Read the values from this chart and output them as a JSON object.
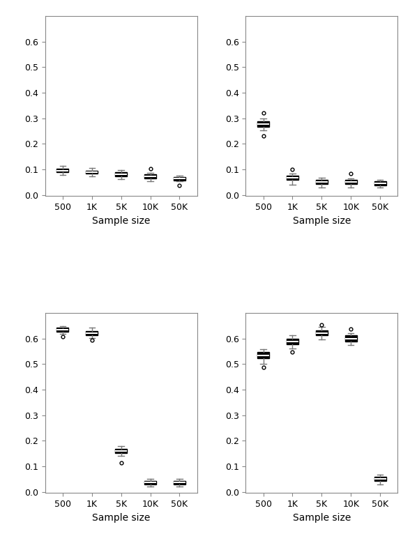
{
  "panels": [
    {
      "xlabel": "Sample size",
      "ylim": [
        -0.005,
        0.7
      ],
      "yticks": [
        0.0,
        0.1,
        0.2,
        0.3,
        0.4,
        0.5,
        0.6
      ],
      "xtick_labels": [
        "500",
        "1K",
        "5K",
        "10K",
        "50K"
      ],
      "boxes": [
        {
          "med": 0.095,
          "q1": 0.088,
          "q3": 0.102,
          "whislo": 0.078,
          "whishi": 0.113,
          "fliers": []
        },
        {
          "med": 0.088,
          "q1": 0.082,
          "q3": 0.095,
          "whislo": 0.072,
          "whishi": 0.105,
          "fliers": []
        },
        {
          "med": 0.08,
          "q1": 0.072,
          "q3": 0.088,
          "whislo": 0.062,
          "whishi": 0.098,
          "fliers": []
        },
        {
          "med": 0.073,
          "q1": 0.065,
          "q3": 0.08,
          "whislo": 0.052,
          "whishi": 0.085,
          "fliers": [
            0.102
          ]
        },
        {
          "med": 0.063,
          "q1": 0.057,
          "q3": 0.07,
          "whislo": 0.052,
          "whishi": 0.075,
          "fliers": [
            0.038
          ]
        }
      ]
    },
    {
      "xlabel": "Sample size",
      "ylim": [
        -0.005,
        0.7
      ],
      "yticks": [
        0.0,
        0.1,
        0.2,
        0.3,
        0.4,
        0.5,
        0.6
      ],
      "xtick_labels": [
        "500",
        "1K",
        "5K",
        "10K",
        "50K"
      ],
      "boxes": [
        {
          "med": 0.278,
          "q1": 0.265,
          "q3": 0.288,
          "whislo": 0.252,
          "whishi": 0.298,
          "fliers": [
            0.23,
            0.32
          ]
        },
        {
          "med": 0.068,
          "q1": 0.058,
          "q3": 0.075,
          "whislo": 0.04,
          "whishi": 0.082,
          "fliers": [
            0.1
          ]
        },
        {
          "med": 0.05,
          "q1": 0.042,
          "q3": 0.058,
          "whislo": 0.03,
          "whishi": 0.068,
          "fliers": []
        },
        {
          "med": 0.05,
          "q1": 0.042,
          "q3": 0.058,
          "whislo": 0.03,
          "whishi": 0.065,
          "fliers": [
            0.082
          ]
        },
        {
          "med": 0.045,
          "q1": 0.038,
          "q3": 0.053,
          "whislo": 0.028,
          "whishi": 0.06,
          "fliers": []
        }
      ]
    },
    {
      "xlabel": "Sample size",
      "ylim": [
        -0.005,
        0.7
      ],
      "yticks": [
        0.0,
        0.1,
        0.2,
        0.3,
        0.4,
        0.5,
        0.6
      ],
      "xtick_labels": [
        "500",
        "1K",
        "5K",
        "10K",
        "50K"
      ],
      "boxes": [
        {
          "med": 0.635,
          "q1": 0.628,
          "q3": 0.642,
          "whislo": 0.62,
          "whishi": 0.65,
          "fliers": [
            0.608
          ]
        },
        {
          "med": 0.622,
          "q1": 0.613,
          "q3": 0.63,
          "whislo": 0.602,
          "whishi": 0.642,
          "fliers": [
            0.593
          ]
        },
        {
          "med": 0.16,
          "q1": 0.153,
          "q3": 0.167,
          "whislo": 0.142,
          "whishi": 0.178,
          "fliers": [
            0.115
          ]
        },
        {
          "med": 0.038,
          "q1": 0.03,
          "q3": 0.044,
          "whislo": 0.02,
          "whishi": 0.05,
          "fliers": []
        },
        {
          "med": 0.038,
          "q1": 0.03,
          "q3": 0.044,
          "whislo": 0.02,
          "whishi": 0.05,
          "fliers": []
        }
      ]
    },
    {
      "xlabel": "Sample size",
      "ylim": [
        -0.005,
        0.7
      ],
      "yticks": [
        0.0,
        0.1,
        0.2,
        0.3,
        0.4,
        0.5,
        0.6
      ],
      "xtick_labels": [
        "500",
        "1K",
        "5K",
        "10K",
        "50K"
      ],
      "boxes": [
        {
          "med": 0.535,
          "q1": 0.522,
          "q3": 0.548,
          "whislo": 0.502,
          "whishi": 0.558,
          "fliers": [
            0.487
          ]
        },
        {
          "med": 0.59,
          "q1": 0.578,
          "q3": 0.6,
          "whislo": 0.562,
          "whishi": 0.612,
          "fliers": [
            0.548
          ]
        },
        {
          "med": 0.622,
          "q1": 0.612,
          "q3": 0.632,
          "whislo": 0.598,
          "whishi": 0.645,
          "fliers": [
            0.655
          ]
        },
        {
          "med": 0.6,
          "q1": 0.59,
          "q3": 0.612,
          "whislo": 0.575,
          "whishi": 0.622,
          "fliers": [
            0.638
          ]
        },
        {
          "med": 0.05,
          "q1": 0.042,
          "q3": 0.058,
          "whislo": 0.03,
          "whishi": 0.068,
          "fliers": []
        }
      ]
    }
  ],
  "bg_color": "#ffffff",
  "box_color": "#000000",
  "median_color": "#ffffff",
  "whisker_color": "#777777",
  "cap_color": "#777777",
  "flier_color": "#000000",
  "linewidth": 1.0,
  "box_width": 0.4,
  "flier_size": 3.5
}
